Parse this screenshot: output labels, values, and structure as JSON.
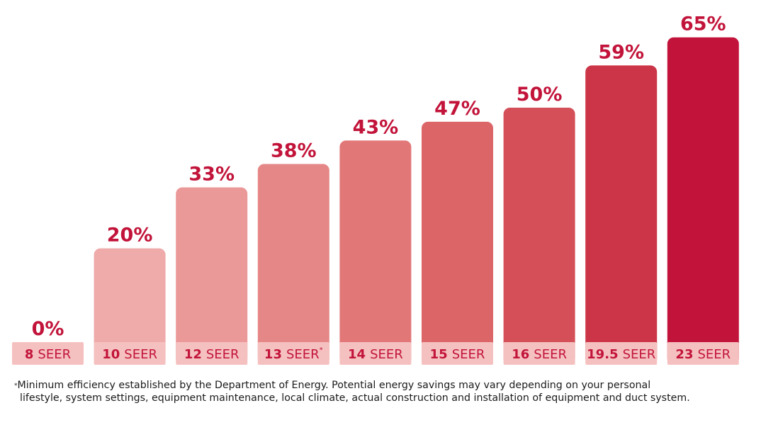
{
  "chart_data": {
    "type": "bar",
    "title": "",
    "xlabel": "",
    "ylabel": "",
    "ylim": [
      0,
      65
    ],
    "categories": [
      {
        "num": "8",
        "unit": "SEER",
        "mark": ""
      },
      {
        "num": "10",
        "unit": "SEER",
        "mark": ""
      },
      {
        "num": "12",
        "unit": "SEER",
        "mark": ""
      },
      {
        "num": "13",
        "unit": "SEER",
        "mark": "*"
      },
      {
        "num": "14",
        "unit": "SEER",
        "mark": ""
      },
      {
        "num": "15",
        "unit": "SEER",
        "mark": ""
      },
      {
        "num": "16",
        "unit": "SEER",
        "mark": ""
      },
      {
        "num": "19.5",
        "unit": "SEER",
        "mark": ""
      },
      {
        "num": "23",
        "unit": "SEER",
        "mark": ""
      }
    ],
    "values": [
      0,
      20,
      33,
      38,
      43,
      47,
      50,
      59,
      65
    ],
    "value_labels": [
      "0%",
      "20%",
      "33%",
      "38%",
      "43%",
      "47%",
      "50%",
      "59%",
      "65%"
    ],
    "bar_colors": [
      "#f1b9b9",
      "#efaaaa",
      "#eb9899",
      "#e68787",
      "#e27778",
      "#dc6568",
      "#d44f58",
      "#cb3547",
      "#c2143a"
    ],
    "label_box_color": "#f5c1c0",
    "value_label_color": "#c2143a",
    "label_text_color": "#c2143a"
  },
  "footnote": {
    "mark": "*",
    "line1": "Minimum efficiency established by the Department of Energy. Potential energy savings may vary depending on your personal",
    "line2": "lifestyle, system settings, equipment maintenance, local climate, actual construction and installation of equipment and duct system."
  }
}
